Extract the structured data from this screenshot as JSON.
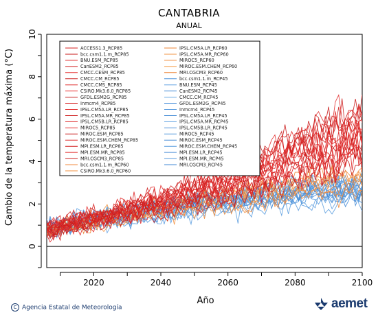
{
  "chart_data": {
    "type": "line",
    "title": "CANTABRIA",
    "subtitle": "ANUAL",
    "xlabel": "Año",
    "ylabel": "Cambio de la temperatura máxima (°C)",
    "xlim": [
      2006,
      2100
    ],
    "ylim": [
      -1.0,
      10
    ],
    "x_ticks": [
      2020,
      2040,
      2060,
      2080,
      2100
    ],
    "y_ticks": [
      0,
      2,
      4,
      6,
      8,
      10
    ],
    "grid": false,
    "legend_position": "top-left",
    "zero_line": 0,
    "envelope": {
      "x": [
        2006,
        2020,
        2040,
        2060,
        2080,
        2100
      ],
      "rcp85_mean": [
        0.8,
        1.3,
        2.1,
        3.0,
        4.3,
        5.2
      ],
      "rcp85_spread": [
        0.9,
        1.0,
        1.1,
        1.3,
        1.6,
        2.0
      ],
      "rcp60_mean": [
        0.8,
        1.2,
        1.7,
        2.2,
        2.7,
        3.0
      ],
      "rcp60_spread": [
        0.8,
        0.9,
        0.9,
        1.0,
        1.1,
        1.2
      ],
      "rcp45_mean": [
        0.8,
        1.2,
        1.6,
        2.0,
        2.3,
        2.5
      ],
      "rcp45_spread": [
        0.8,
        0.9,
        0.9,
        1.0,
        1.0,
        1.1
      ]
    },
    "series": [
      {
        "name": "ACCESS1.3_RCP85",
        "group": "RCP85",
        "color": "#d62020"
      },
      {
        "name": "bcc.csm1.1.m_RCP85",
        "group": "RCP85",
        "color": "#c81818"
      },
      {
        "name": "BNU.ESM_RCP85",
        "group": "RCP85",
        "color": "#e02828"
      },
      {
        "name": "CanESM2_RCP85",
        "group": "RCP85",
        "color": "#d01c1c"
      },
      {
        "name": "CMCC.CESM_RCP85",
        "group": "RCP85",
        "color": "#e63030"
      },
      {
        "name": "CMCC.CM_RCP85",
        "group": "RCP85",
        "color": "#cc2020"
      },
      {
        "name": "CMCC.CMS_RCP85",
        "group": "RCP85",
        "color": "#dd2424"
      },
      {
        "name": "CSIRO.Mk3.6.0_RCP85",
        "group": "RCP85",
        "color": "#e82c2c"
      },
      {
        "name": "GFDL.ESM2G_RCP85",
        "group": "RCP85",
        "color": "#c41a1a"
      },
      {
        "name": "Inmcm4_RCP85",
        "group": "RCP85",
        "color": "#d82626"
      },
      {
        "name": "IPSL.CM5A.LR_RCP85",
        "group": "RCP85",
        "color": "#e22e2e"
      },
      {
        "name": "IPSL.CM5A.MR_RCP85",
        "group": "RCP85",
        "color": "#cf1e1e"
      },
      {
        "name": "IPSL.CM5B.LR_RCP85",
        "group": "RCP85",
        "color": "#db2222"
      },
      {
        "name": "MIROC5_RCP85",
        "group": "RCP85",
        "color": "#e42a2a"
      },
      {
        "name": "MIROC.ESM_RCP85",
        "group": "RCP85",
        "color": "#c91c1c"
      },
      {
        "name": "MIROC.ESM.CHEM_RCP85",
        "group": "RCP85",
        "color": "#de2828"
      },
      {
        "name": "MPI.ESM.LR_RCP85",
        "group": "RCP85",
        "color": "#d42020"
      },
      {
        "name": "MPI.ESM.MR_RCP85",
        "group": "RCP85",
        "color": "#e02626"
      },
      {
        "name": "MRI.CGCM3_RCP85",
        "group": "RCP85",
        "color": "#cb1e1e"
      },
      {
        "name": "bcc.csm1.1.m_RCP60",
        "group": "RCP60",
        "color": "#f08a3c"
      },
      {
        "name": "CSIRO.Mk3.6.0_RCP60",
        "group": "RCP60",
        "color": "#f39040"
      },
      {
        "name": "IPSL.CM5A.LR_RCP60",
        "group": "RCP60",
        "color": "#ee8436"
      },
      {
        "name": "IPSL.CM5A.MR_RCP60",
        "group": "RCP60",
        "color": "#f29444"
      },
      {
        "name": "MIROC5_RCP60",
        "group": "RCP60",
        "color": "#ef8a3a"
      },
      {
        "name": "MIROC.ESM.CHEM_RCP60",
        "group": "RCP60",
        "color": "#f4963e"
      },
      {
        "name": "MRI.CGCM3_RCP60",
        "group": "RCP60",
        "color": "#ec8232"
      },
      {
        "name": "bcc.csm1.1.m_RCP45",
        "group": "RCP45",
        "color": "#4a90d9"
      },
      {
        "name": "BNU.ESM_RCP45",
        "group": "RCP45",
        "color": "#5a9ee0"
      },
      {
        "name": "CanESM2_RCP45",
        "group": "RCP45",
        "color": "#3f86d2"
      },
      {
        "name": "CMCC.CM_RCP45",
        "group": "RCP45",
        "color": "#62a4e2"
      },
      {
        "name": "GFDL.ESM2G_RCP45",
        "group": "RCP45",
        "color": "#4d92da"
      },
      {
        "name": "Inmcm4_RCP45",
        "group": "RCP45",
        "color": "#579ade"
      },
      {
        "name": "IPSL.CM5A.LR_RCP45",
        "group": "RCP45",
        "color": "#428ad5"
      },
      {
        "name": "IPSL.CM5A.MR_RCP45",
        "group": "RCP45",
        "color": "#5e9fe1"
      },
      {
        "name": "IPSL.CM5B.LR_RCP45",
        "group": "RCP45",
        "color": "#4c8fd8"
      },
      {
        "name": "MIROC5_RCP45",
        "group": "RCP45",
        "color": "#5498dc"
      },
      {
        "name": "MIROC.ESM_RCP45",
        "group": "RCP45",
        "color": "#468cd6"
      },
      {
        "name": "MIROC.ESM.CHEM_RCP45",
        "group": "RCP45",
        "color": "#5b9ddf"
      },
      {
        "name": "MPI.ESM.LR_RCP45",
        "group": "RCP45",
        "color": "#4b8ed7"
      },
      {
        "name": "MPI.ESM.MR_RCP45",
        "group": "RCP45",
        "color": "#5699dd"
      },
      {
        "name": "MRI.CGCM3_RCP45",
        "group": "RCP45",
        "color": "#4089d4"
      }
    ]
  },
  "footer": {
    "copyright": "Agencia Estatal de Meteorología",
    "copyright_symbol": "C",
    "logo_text": "aemet"
  },
  "colors": {
    "logo": "#1a3a6e"
  }
}
